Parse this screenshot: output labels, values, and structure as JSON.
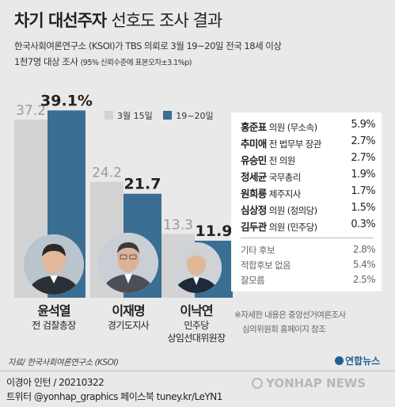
{
  "header": {
    "title_main": "차기 대선주자",
    "title_sub": "선호도 조사 결과",
    "line1": "한국사회여론연구소 (KSOI)가 TBS 의뢰로 3월 19~20일 전국 18세 이상",
    "line2": "1천7명 대상 조사",
    "line2_note": "(95% 신뢰수준에 표본오차±3.1%p)"
  },
  "colors": {
    "series1": "#d3d3d3",
    "series2": "#3a6e93",
    "background": "#e9e9e9"
  },
  "chart_data": {
    "type": "bar",
    "title": "차기 대선주자 선호도 조사 결과",
    "categories": [
      "윤석열",
      "이재명",
      "이낙연"
    ],
    "series": [
      {
        "name": "3월 15일",
        "values": [
          37.2,
          24.2,
          13.3
        ],
        "labels": [
          "37.2",
          "24.2",
          "13.3"
        ]
      },
      {
        "name": "19~20일",
        "values": [
          39.1,
          21.7,
          11.9
        ],
        "labels": [
          "39.1%",
          "21.7",
          "11.9"
        ]
      }
    ],
    "ylim": [
      0,
      45
    ],
    "legend_position": "top"
  },
  "candidates": [
    {
      "name": "윤석열",
      "role_lines": [
        "전 검찰총장"
      ],
      "photo_icon": "person-photo-icon"
    },
    {
      "name": "이재명",
      "role_lines": [
        "경기도지사"
      ],
      "photo_icon": "person-photo-icon"
    },
    {
      "name": "이낙연",
      "role_lines": [
        "민주당",
        "상임선대위원장"
      ],
      "photo_icon": "person-photo-icon"
    }
  ],
  "others": [
    {
      "name": "홍준표",
      "desc": "의원 (무소속)",
      "pct": "5.9%"
    },
    {
      "name": "추미애",
      "desc": "전 법무부 장관",
      "pct": "2.7%"
    },
    {
      "name": "유승민",
      "desc": "전 의원",
      "pct": "2.7%"
    },
    {
      "name": "정세균",
      "desc": "국무총리",
      "pct": "1.9%"
    },
    {
      "name": "원희룡",
      "desc": "제주지사",
      "pct": "1.7%"
    },
    {
      "name": "심상정",
      "desc": "의원 (정의당)",
      "pct": "1.5%"
    },
    {
      "name": "김두관",
      "desc": "의원 (민주당)",
      "pct": "0.3%"
    }
  ],
  "misc": [
    {
      "label": "기타 후보",
      "pct": "2.8%"
    },
    {
      "label": "적합후보 없음",
      "pct": "5.4%"
    },
    {
      "label": "잘모름",
      "pct": "2.5%"
    }
  ],
  "footnote": {
    "line1": "※자세한 내용은 중앙선거여론조사",
    "line2": "심의위원회 홈페이지 참조"
  },
  "footer": {
    "source": "자료/ 한국사회여론연구소 (KSOI)",
    "credit": "이경아 인턴 / 20210322",
    "social": "트위터 @yonhap_graphics  페이스북 tuney.kr/LeYN1",
    "logo_text": "연합뉴스",
    "watermark": "YONHAP NEWS"
  }
}
